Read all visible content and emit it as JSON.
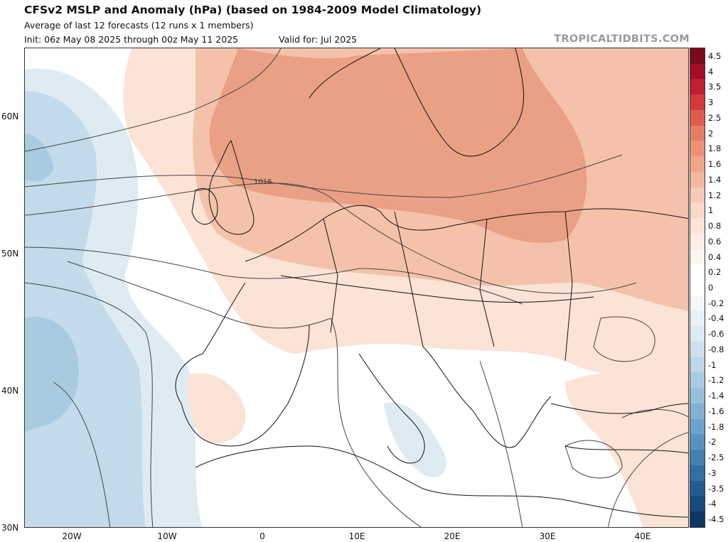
{
  "header": {
    "title": "CFSv2 MSLP and Anomaly (hPa) (based on 1984-2009 Model Climatology)",
    "subtitle": "Average of last 12 forecasts (12 runs x 1 members)",
    "init": "Init: 06z May 08 2025 through 00z May 11 2025",
    "valid": "Valid for: Jul 2025",
    "source": "TROPICALTIDBITS.COM"
  },
  "map": {
    "lat_labels": [
      "60N",
      "50N",
      "40N",
      "30N"
    ],
    "lon_labels": [
      "20W",
      "10W",
      "0",
      "10E",
      "20E",
      "30E",
      "40E"
    ],
    "contour_label": "1016",
    "colors": {
      "pos_strong": "#eaa084",
      "pos_mid": "#f4c2aa",
      "pos_weak": "#fbe3d6",
      "neg_weak": "#deebf3",
      "neg_mid": "#c3dbea",
      "neg_strong": "#a9cbe0",
      "border": "#111111",
      "contour": "#444444"
    }
  },
  "colorbar": {
    "labels": [
      "4.5",
      "4",
      "3.5",
      "3",
      "2.5",
      "2",
      "1.8",
      "1.6",
      "1.4",
      "1.2",
      "1",
      "0.8",
      "0.6",
      "0.4",
      "0.2",
      "0",
      "-0.2",
      "-0.4",
      "-0.6",
      "-0.8",
      "-1",
      "-1.2",
      "-1.4",
      "-1.6",
      "-1.8",
      "-2",
      "-2.5",
      "-3",
      "-3.5",
      "-4",
      "-4.5"
    ],
    "colors": [
      "#7a0a1c",
      "#a50f25",
      "#bf1f2e",
      "#d23a3a",
      "#df5c4f",
      "#e77c64",
      "#ec9076",
      "#f0a58b",
      "#f4b8a0",
      "#f7cab6",
      "#f9d8c8",
      "#fbe4d8",
      "#fcede5",
      "#fdf5f0",
      "#ffffff",
      "#ffffff",
      "#f4f8fb",
      "#e8f1f7",
      "#dcebf3",
      "#cde1ed",
      "#bcd7e8",
      "#a9cbe2",
      "#96bfdb",
      "#82b1d3",
      "#6ea3cb",
      "#5992c0",
      "#4480b4",
      "#336ea6",
      "#245b94",
      "#184a7e",
      "#0e3766"
    ]
  }
}
